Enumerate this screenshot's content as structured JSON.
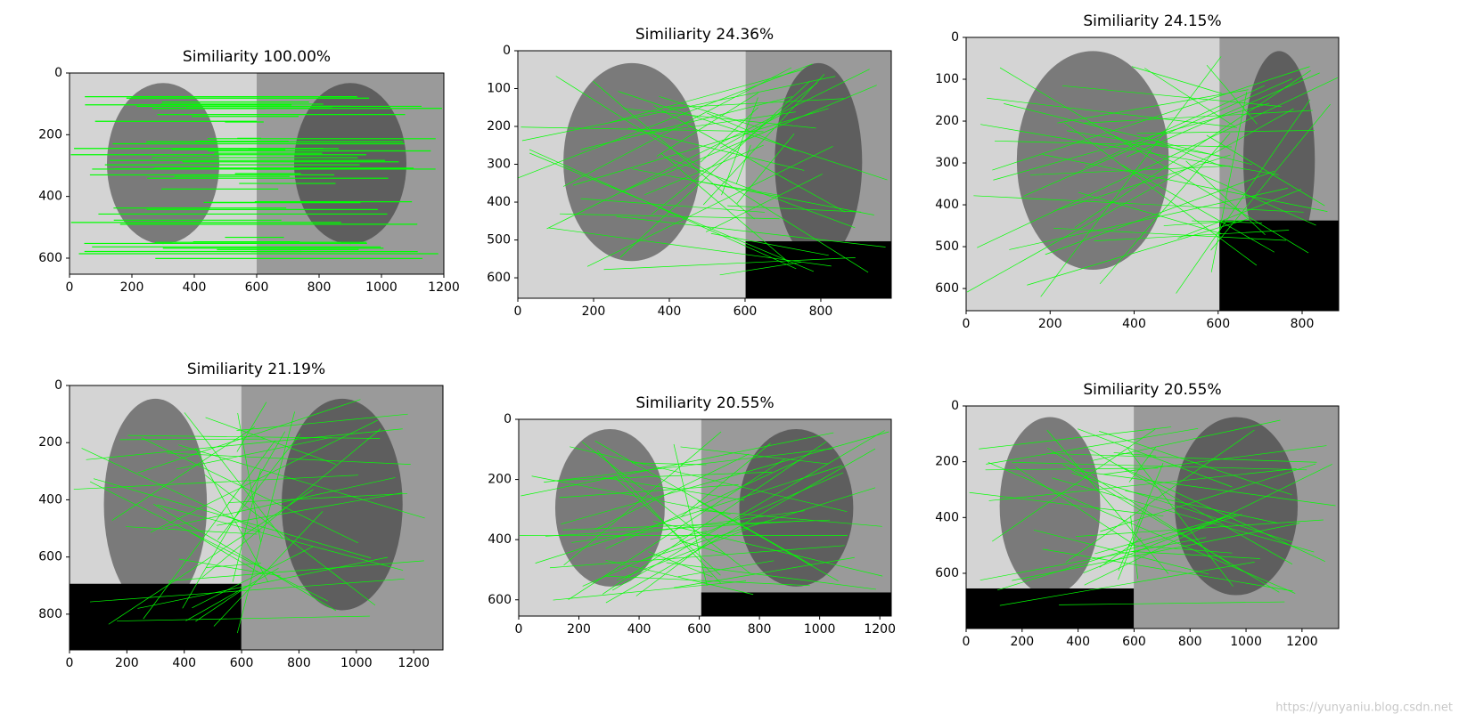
{
  "chart_data": [
    {
      "type": "image",
      "title": "Similiarity 100.00%",
      "xlim": [
        0,
        1200
      ],
      "ylim": [
        652,
        0
      ],
      "xticks": [
        0,
        200,
        400,
        600,
        800,
        1000,
        1200
      ],
      "yticks": [
        0,
        200,
        400,
        600
      ]
    },
    {
      "type": "image",
      "title": "Similiarity 24.36%",
      "xlim": [
        0,
        986
      ],
      "ylim": [
        654,
        0
      ],
      "xticks": [
        0,
        200,
        400,
        600,
        800
      ],
      "yticks": [
        0,
        100,
        200,
        300,
        400,
        500,
        600
      ]
    },
    {
      "type": "image",
      "title": "Similiarity 24.15%",
      "xlim": [
        0,
        887
      ],
      "ylim": [
        653,
        0
      ],
      "xticks": [
        0,
        200,
        400,
        600,
        800
      ],
      "yticks": [
        0,
        100,
        200,
        300,
        400,
        500,
        600
      ]
    },
    {
      "type": "image",
      "title": "Similiarity 21.19%",
      "xlim": [
        0,
        1302
      ],
      "ylim": [
        925,
        0
      ],
      "xticks": [
        0,
        200,
        400,
        600,
        800,
        1000,
        1200
      ],
      "yticks": [
        0,
        200,
        400,
        600,
        800
      ]
    },
    {
      "type": "image",
      "title": "Similiarity 20.55%",
      "xlim": [
        0,
        1238
      ],
      "ylim": [
        654,
        0
      ],
      "xticks": [
        0,
        200,
        400,
        600,
        800,
        1000,
        1200
      ],
      "yticks": [
        0,
        200,
        400,
        600
      ]
    },
    {
      "type": "image",
      "title": "Similiarity 20.55%",
      "xlim": [
        0,
        1331
      ],
      "ylim": [
        798,
        0
      ],
      "xticks": [
        0,
        200,
        400,
        600,
        800,
        1000,
        1200
      ],
      "yticks": [
        0,
        200,
        400,
        600
      ]
    }
  ],
  "watermark": "https://yunyaniu.blog.csdn.net"
}
